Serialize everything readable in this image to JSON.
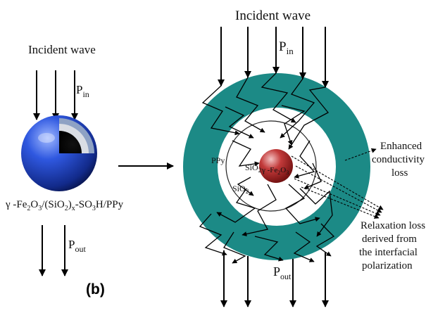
{
  "left": {
    "incident_label": "Incident wave",
    "p_in": {
      "base": "P",
      "sub": "in"
    },
    "p_out": {
      "base": "P",
      "sub": "out"
    },
    "formula": {
      "prefix": "γ -Fe",
      "s1": "2",
      "m1": "O",
      "s2": "3",
      "m2": "/(SiO",
      "s3": "2",
      "m3": ")",
      "s4": "x",
      "m4": "-SO",
      "s5": "3",
      "m5": "H/PPy"
    },
    "panel_label": "(b)"
  },
  "right": {
    "incident_label": "Incident wave",
    "p_in": {
      "base": "P",
      "sub": "in"
    },
    "p_out": {
      "base": "P",
      "sub": "out"
    },
    "ring_label": "PPy",
    "sio2_outer": {
      "base": "SiO",
      "sub": "2"
    },
    "sio2_inner": {
      "base": "SiO",
      "sub": "2"
    },
    "core_label": {
      "prefix": "γ -Fe",
      "s1": "2",
      "m1": "O",
      "s2": "3"
    },
    "annotation1": [
      "Enhanced",
      "conductivity",
      "loss"
    ],
    "annotation2": [
      "Relaxation loss",
      "derived from",
      "the interfacial",
      "polarization"
    ]
  },
  "colors": {
    "ring": "#1c8a86",
    "core": "#a51e1e",
    "sphere": "#1d3fc4",
    "arrow": "#000000"
  }
}
